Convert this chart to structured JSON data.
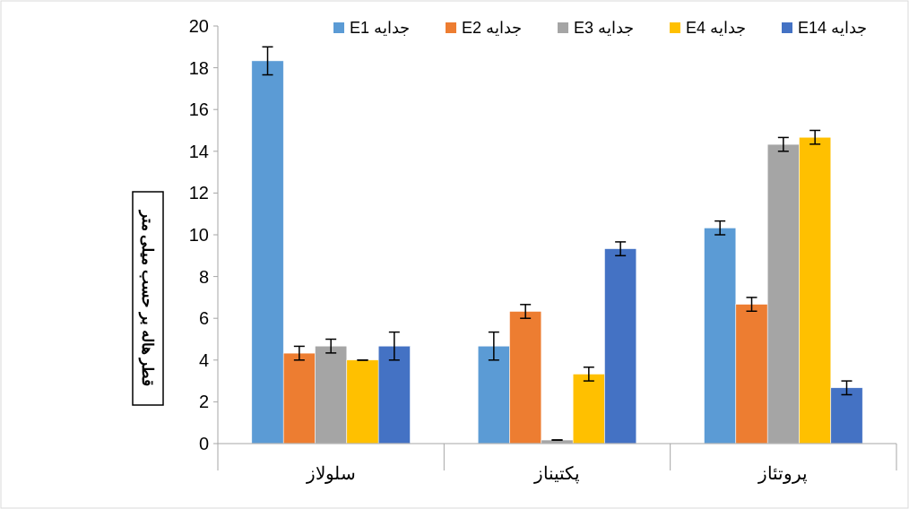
{
  "chart_data": {
    "type": "bar",
    "ylabel": "قطر هاله بر حسب میلی متر",
    "categories": [
      "سلولاز",
      "پکتیناز",
      "پروتئاز"
    ],
    "series": [
      {
        "name": "جدایه E1",
        "color": "#5b9bd5",
        "values": [
          18.33,
          4.67,
          10.33
        ],
        "errors": [
          0.67,
          0.67,
          0.33
        ]
      },
      {
        "name": "جدایه E2",
        "color": "#ed7d31",
        "values": [
          4.33,
          6.33,
          6.67
        ],
        "errors": [
          0.33,
          0.33,
          0.33
        ]
      },
      {
        "name": "جدایه E3",
        "color": "#a5a5a5",
        "values": [
          4.67,
          0.17,
          14.33
        ],
        "errors": [
          0.33,
          0,
          0.33
        ]
      },
      {
        "name": "جدایه E4",
        "color": "#ffc000",
        "values": [
          4,
          3.33,
          14.67
        ],
        "errors": [
          0,
          0.33,
          0.33
        ]
      },
      {
        "name": "جدایه E14",
        "color": "#4472c4",
        "values": [
          4.67,
          9.33,
          2.67
        ],
        "errors": [
          0.67,
          0.33,
          0.33
        ]
      }
    ],
    "ylim": [
      0,
      20
    ],
    "yticks": [
      0,
      2,
      4,
      6,
      8,
      10,
      12,
      14,
      16,
      18,
      20
    ],
    "grid": false,
    "legend": "top right"
  }
}
